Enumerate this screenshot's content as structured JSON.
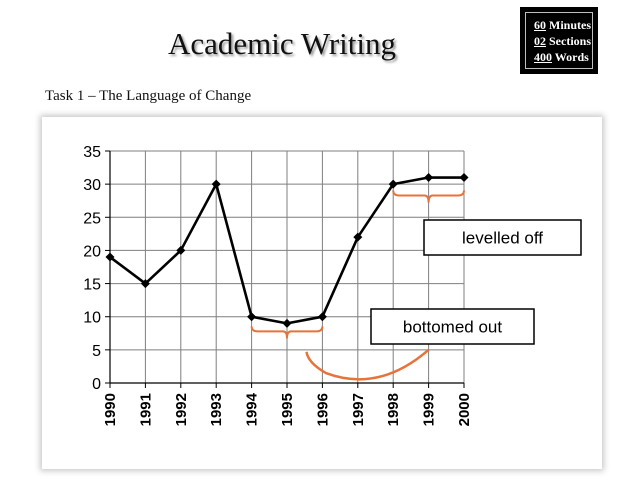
{
  "header": {
    "title": "Academic Writing",
    "subtitle": "Task 1 – The Language of Change",
    "badge": {
      "line1_num": "60",
      "line1_text": " Minutes",
      "line2_num": "02",
      "line2_text": " Sections",
      "line3_num": "400",
      "line3_text": " Words"
    }
  },
  "chart_data": {
    "type": "line",
    "categories": [
      "1990",
      "1991",
      "1992",
      "1993",
      "1994",
      "1995",
      "1996",
      "1997",
      "1998",
      "1999",
      "2000"
    ],
    "values": [
      19,
      15,
      20,
      30,
      10,
      9,
      10,
      22,
      30,
      31,
      31
    ],
    "yticks": [
      "0",
      "5",
      "10",
      "15",
      "20",
      "25",
      "30",
      "35"
    ],
    "ylim": [
      0,
      35
    ],
    "grid": true,
    "annotations": [
      "levelled off",
      "bottomed out"
    ],
    "colors": {
      "line": "#000000",
      "bracket": "#e8733a",
      "grid": "#7f7f7f"
    }
  }
}
